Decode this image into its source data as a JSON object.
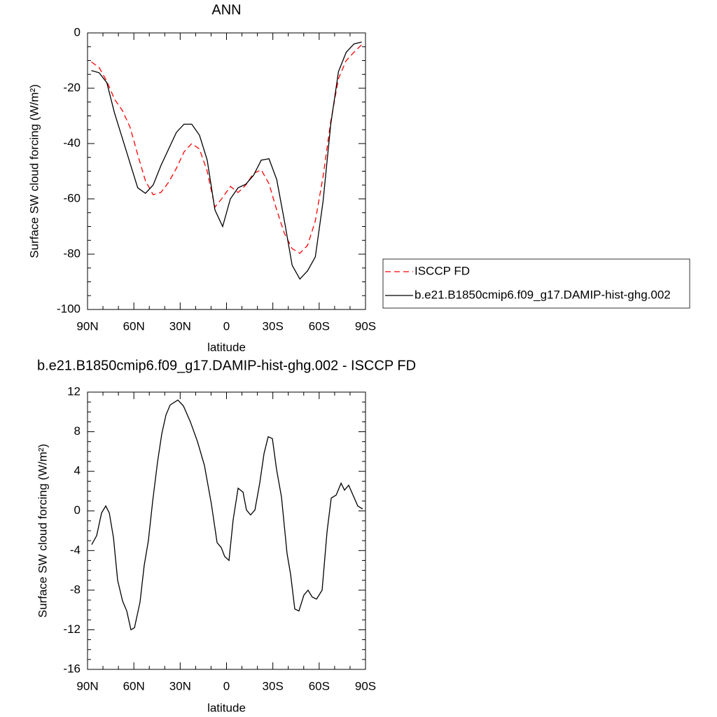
{
  "chart_data": [
    {
      "type": "line",
      "title": "ANN",
      "xlabel": "latitude",
      "ylabel": "Surface SW cloud forcing (W/m²)",
      "x": [
        87.5,
        82.5,
        77.5,
        72.5,
        67.5,
        62.5,
        57.5,
        52.5,
        47.5,
        42.5,
        37.5,
        32.5,
        27.5,
        22.5,
        17.5,
        12.5,
        7.5,
        2.5,
        -2.5,
        -7.5,
        -12.5,
        -17.5,
        -22.5,
        -27.5,
        -32.5,
        -37.5,
        -42.5,
        -47.5,
        -52.5,
        -57.5,
        -62.5,
        -67.5,
        -72.5,
        -77.5,
        -82.5,
        -87.5
      ],
      "series": [
        {
          "name": "ISCCP FD",
          "color": "#ff0000",
          "dashed": true,
          "values": [
            -10.5,
            -12.5,
            -17.5,
            -24,
            -28,
            -34,
            -44,
            -53.5,
            -58.5,
            -57.7,
            -54,
            -49,
            -43,
            -40,
            -42,
            -50,
            -63,
            -59.5,
            -55.5,
            -57.7,
            -55,
            -50.8,
            -49.5,
            -54.5,
            -64,
            -72.5,
            -78,
            -79.7,
            -76.8,
            -68,
            -52,
            -32,
            -16.5,
            -10,
            -7,
            -4.3
          ]
        },
        {
          "name": "b.e21.B1850cmip6.f09_g17.DAMIP-hist-ghg.002",
          "color": "#000000",
          "dashed": false,
          "values": [
            -13.6,
            -14.4,
            -18,
            -29,
            -38,
            -47,
            -56,
            -58,
            -55,
            -48,
            -42,
            -36,
            -33,
            -33,
            -37,
            -46,
            -64,
            -70,
            -60,
            -56,
            -54.7,
            -51.5,
            -46,
            -45.5,
            -53,
            -68,
            -84,
            -89,
            -86,
            -81,
            -61,
            -33,
            -14,
            -7,
            -4,
            -3.3
          ]
        }
      ],
      "xlim": [
        90,
        -90
      ],
      "ylim": [
        -100,
        0
      ],
      "xticks": [
        {
          "value": 90,
          "label": "90N"
        },
        {
          "value": 60,
          "label": "60N"
        },
        {
          "value": 30,
          "label": "30N"
        },
        0,
        {
          "value": -30,
          "label": "30S"
        },
        {
          "value": -60,
          "label": "60S"
        },
        {
          "value": -90,
          "label": "90S"
        }
      ],
      "yticks": [
        -100,
        -80,
        -60,
        -40,
        -20,
        0
      ],
      "legend": "right"
    },
    {
      "type": "line",
      "title": "b.e21.B1850cmip6.f09_g17.DAMIP-hist-ghg.002 - ISCCP FD",
      "xlabel": "latitude",
      "ylabel": "Surface SW cloud forcing (W/m²)",
      "x": [
        87.3,
        84.1,
        80.9,
        78.2,
        75.9,
        73.2,
        70.5,
        67.3,
        64.6,
        61.9,
        59.6,
        56,
        53.3,
        50.6,
        47.8,
        44.7,
        41.9,
        39.2,
        36.5,
        31.5,
        27.9,
        23.4,
        18.8,
        14.3,
        9.8,
        6.1,
        3.4,
        1.2,
        -1.6,
        -4.3,
        -7.5,
        -10.7,
        -12.9,
        -15.6,
        -18.4,
        -21.5,
        -24.3,
        -27,
        -29.7,
        -32.4,
        -35.6,
        -39.2,
        -41.5,
        -44.2,
        -46.9,
        -50.1,
        -52.8,
        -55.5,
        -58.3,
        -61.9,
        -65.1,
        -67.8,
        -71,
        -74.2,
        -76.4,
        -79.1,
        -85,
        -88.2
      ],
      "series": [
        {
          "color": "#000000",
          "dashed": false,
          "values": [
            -3.4,
            -2.5,
            -0.2,
            0.5,
            -0.2,
            -2.7,
            -7,
            -9.1,
            -10.1,
            -12,
            -11.8,
            -9.2,
            -5.5,
            -3,
            1,
            4.9,
            7.8,
            9.7,
            10.7,
            11.2,
            10.6,
            9,
            7,
            4.6,
            0.7,
            -3.2,
            -3.7,
            -4.6,
            -5,
            -0.9,
            2.3,
            1.9,
            0.1,
            -0.4,
            0.1,
            2.8,
            5.8,
            7.5,
            7.3,
            4.2,
            1.4,
            -4.3,
            -6.4,
            -9.9,
            -10.1,
            -8.5,
            -8,
            -8.7,
            -8.9,
            -8,
            -2.1,
            1.3,
            1.6,
            2.8,
            2.1,
            2.6,
            0.5,
            0.2
          ]
        }
      ],
      "xlim": [
        90,
        -90
      ],
      "ylim": [
        -16,
        12
      ],
      "xticks": [
        {
          "value": 90,
          "label": "90N"
        },
        {
          "value": 60,
          "label": "60N"
        },
        {
          "value": 30,
          "label": "30N"
        },
        0,
        {
          "value": -30,
          "label": "30S"
        },
        {
          "value": -60,
          "label": "60S"
        },
        {
          "value": -90,
          "label": "90S"
        }
      ],
      "yticks": [
        -16,
        -12,
        -8,
        -4,
        0,
        4,
        8,
        12
      ]
    }
  ]
}
